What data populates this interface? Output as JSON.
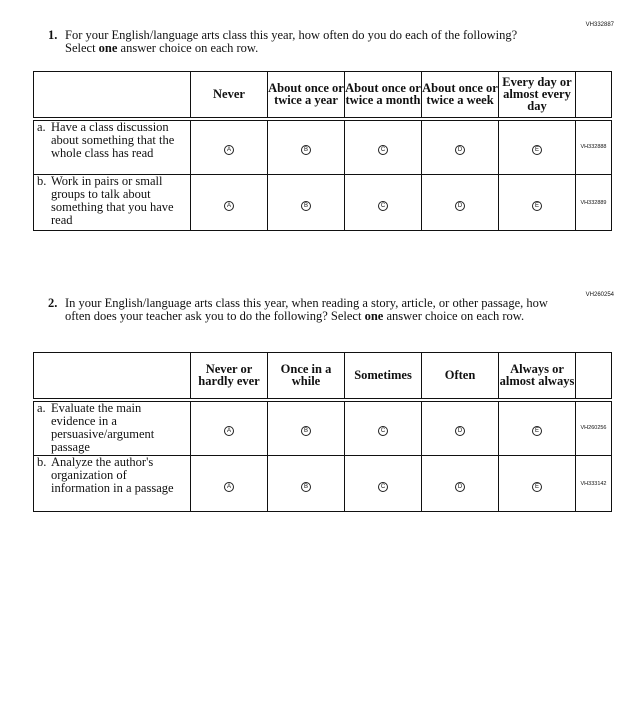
{
  "questions": [
    {
      "id": "VH332887",
      "number": "1.",
      "text_before": "For your English/language arts class this year, how often do you do each of the following? Select ",
      "text_bold": "one",
      "text_after": " answer choice on each row.",
      "columns": [
        "Never",
        "About once or twice a year",
        "About once or twice a month",
        "About once or twice a week",
        "Every day or almost every day"
      ],
      "rows": [
        {
          "letter": "a.",
          "text": "Have a class discussion about something that the whole class has read",
          "id": "VH332888",
          "options": [
            "A",
            "B",
            "C",
            "D",
            "E"
          ]
        },
        {
          "letter": "b.",
          "text": "Work in pairs or small groups to talk about something that you have read",
          "id": "VH332889",
          "options": [
            "A",
            "B",
            "C",
            "D",
            "E"
          ]
        }
      ]
    },
    {
      "id": "VH260254",
      "number": "2.",
      "text_before": "In your English/language arts class this year, when reading a story, article, or other passage, how often does your teacher ask you to do the following? Select ",
      "text_bold": "one",
      "text_after": " answer choice on each row.",
      "columns": [
        "Never or hardly ever",
        "Once in a while",
        "Sometimes",
        "Often",
        "Always or almost always"
      ],
      "rows": [
        {
          "letter": "a.",
          "text": "Evaluate the main evidence in a persuasive/argument passage",
          "id": "VH260256",
          "options": [
            "A",
            "B",
            "C",
            "D",
            "E"
          ]
        },
        {
          "letter": "b.",
          "text": "Analyze the author's organization of information in a passage",
          "id": "VH333142",
          "options": [
            "A",
            "B",
            "C",
            "D",
            "E"
          ]
        }
      ]
    }
  ]
}
